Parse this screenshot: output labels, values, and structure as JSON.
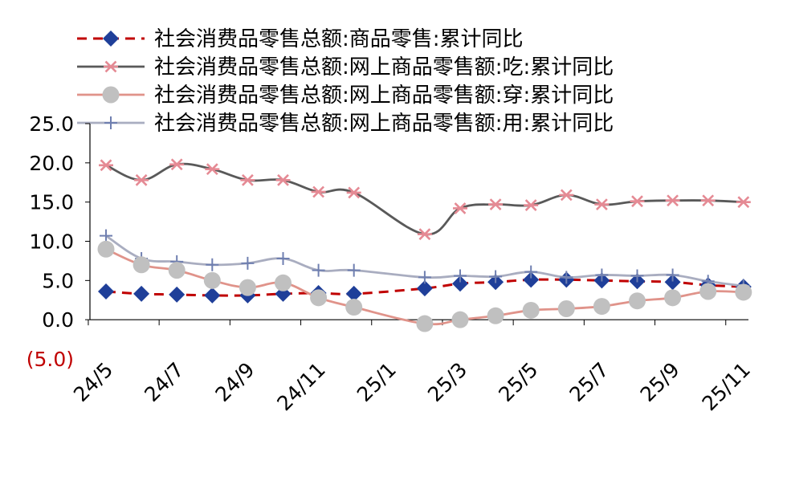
{
  "chart_data": {
    "type": "line",
    "title": "",
    "xlabel": "",
    "ylabel": "",
    "ylim": [
      -5,
      25
    ],
    "y_ticks": [
      "25.0",
      "20.0",
      "15.0",
      "10.0",
      "5.0",
      "0.0",
      "(5.0)"
    ],
    "negative_tick_color": "#c00000",
    "x_tick_labels": [
      "24/5",
      "24/7",
      "24/9",
      "24/11",
      "25/1",
      "25/3",
      "25/5",
      "25/7",
      "25/9",
      "25/11"
    ],
    "legend_position": "top",
    "categories": [
      "24/5",
      "24/6",
      "24/7",
      "24/8",
      "24/9",
      "24/10",
      "24/11",
      "24/12",
      "25/1",
      "25/2",
      "25/3",
      "25/4",
      "25/5",
      "25/6",
      "25/7",
      "25/8",
      "25/9",
      "25/10",
      "25/11"
    ],
    "series": [
      {
        "name": "社会消费品零售总额:商品零售:累计同比",
        "color": "#c00000",
        "marker_color": "#1f3f99",
        "marker": "diamond",
        "line_style": "dashed",
        "values": [
          3.6,
          3.3,
          3.2,
          3.1,
          3.1,
          3.3,
          3.4,
          3.3,
          null,
          4.0,
          4.6,
          4.8,
          5.1,
          5.1,
          5.0,
          4.9,
          4.8,
          4.4,
          4.2
        ]
      },
      {
        "name": "社会消费品零售总额:网上商品零售额:吃:累计同比",
        "color": "#595959",
        "marker_color": "#e58a94",
        "marker": "asterisk",
        "line_style": "solid",
        "values": [
          19.7,
          17.8,
          19.8,
          19.2,
          17.8,
          17.8,
          16.3,
          16.2,
          null,
          10.9,
          14.2,
          14.7,
          14.6,
          15.9,
          14.7,
          15.1,
          15.2,
          15.2,
          15.0
        ]
      },
      {
        "name": "社会消费品零售总额:网上商品零售额:穿:累计同比",
        "color": "#e0938a",
        "marker_color": "#c0c0c0",
        "marker": "circle",
        "line_style": "solid",
        "values": [
          9.0,
          7.0,
          6.3,
          5.0,
          4.1,
          4.7,
          2.8,
          1.6,
          null,
          -0.5,
          0.0,
          0.5,
          1.2,
          1.4,
          1.7,
          2.4,
          2.8,
          3.6,
          3.5
        ]
      },
      {
        "name": "社会消费品零售总额:网上商品零售额:用:累计同比",
        "color": "#a9adc0",
        "marker_color": "#6f7fb0",
        "marker": "plus",
        "line_style": "solid",
        "values": [
          10.7,
          7.8,
          7.4,
          7.0,
          7.2,
          7.8,
          6.3,
          6.3,
          null,
          5.4,
          5.6,
          5.5,
          6.1,
          5.4,
          5.7,
          5.6,
          5.7,
          4.9,
          4.3
        ]
      }
    ]
  }
}
